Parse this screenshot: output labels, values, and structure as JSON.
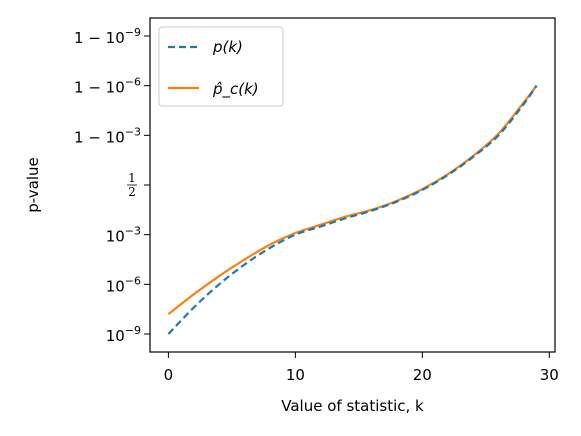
{
  "chart_data": {
    "type": "line",
    "xlabel": "Value of statistic, k",
    "ylabel": "p-value",
    "xlim": [
      -1.45,
      30.45
    ],
    "x_ticks": [
      0,
      10,
      20,
      30
    ],
    "y_scale": "logit",
    "y_ticks": [
      "1e-9",
      "1e-6",
      "1e-3",
      "1/2",
      "1-1e-3",
      "1-1e-6",
      "1-1e-9"
    ],
    "y_tick_labels": [
      "10^{-9}",
      "10^{-6}",
      "10^{-3}",
      "1/2",
      "1 − 10^{-3}",
      "1 − 10^{-6}",
      "1 − 10^{-9}"
    ],
    "grid": false,
    "legend_position": "top-left",
    "series": [
      {
        "name": "p(k)",
        "color": "#1f77b4",
        "style": "dashed",
        "x": [
          0,
          2,
          4,
          6,
          8,
          10,
          12,
          14,
          16,
          18,
          20,
          22,
          24,
          26,
          28,
          29
        ],
        "y_logit10": [
          -9.0,
          -7.4,
          -6.0,
          -4.8,
          -3.8,
          -3.0,
          -2.5,
          -2.0,
          -1.55,
          -1.0,
          -0.3,
          0.6,
          1.7,
          3.0,
          4.9,
          6.0
        ]
      },
      {
        "name": "p̂_c(k)",
        "color": "#ff7f0e",
        "style": "solid",
        "x": [
          0,
          2,
          4,
          6,
          8,
          10,
          12,
          14,
          16,
          18,
          20,
          22,
          24,
          26,
          28,
          29
        ],
        "y_logit10": [
          -7.8,
          -6.6,
          -5.5,
          -4.5,
          -3.6,
          -2.9,
          -2.4,
          -1.9,
          -1.5,
          -0.95,
          -0.25,
          0.65,
          1.75,
          3.1,
          5.0,
          6.0
        ]
      }
    ]
  }
}
